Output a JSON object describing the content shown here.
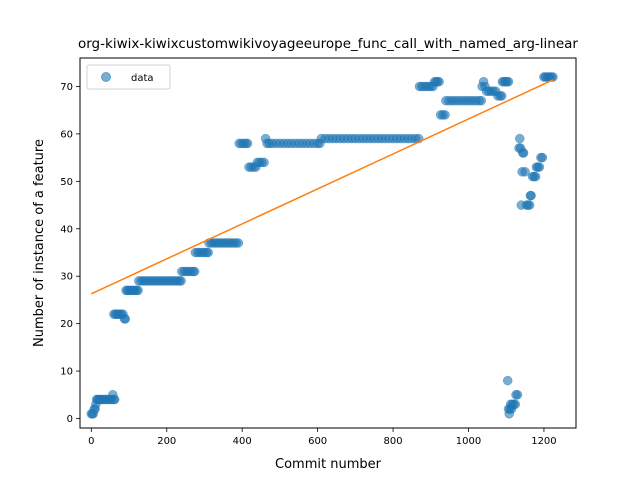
{
  "chart_data": {
    "type": "scatter",
    "title": "org-kiwix-kiwixcustomwikivoyageeurope_func_call_with_named_arg-linear",
    "xlabel": "Commit number",
    "ylabel": "Number of instance of a feature",
    "xlim": [
      -30,
      1285
    ],
    "ylim": [
      -2,
      76
    ],
    "xticks": [
      0,
      200,
      400,
      600,
      800,
      1000,
      1200
    ],
    "yticks": [
      0,
      10,
      20,
      30,
      40,
      50,
      60,
      70
    ],
    "grid": false,
    "legend": {
      "placement": "top-left",
      "entries": [
        "data"
      ]
    },
    "series": [
      {
        "name": "data",
        "color": "#1f77b4",
        "points": [
          [
            0,
            1
          ],
          [
            3,
            1
          ],
          [
            5,
            1
          ],
          [
            8,
            2
          ],
          [
            10,
            2
          ],
          [
            12,
            3
          ],
          [
            14,
            4
          ],
          [
            17,
            4
          ],
          [
            20,
            4
          ],
          [
            23,
            4
          ],
          [
            26,
            4
          ],
          [
            30,
            4
          ],
          [
            34,
            4
          ],
          [
            38,
            4
          ],
          [
            42,
            4
          ],
          [
            46,
            4
          ],
          [
            50,
            4
          ],
          [
            54,
            4
          ],
          [
            57,
            5
          ],
          [
            60,
            4
          ],
          [
            62,
            4
          ],
          [
            60,
            22
          ],
          [
            64,
            22
          ],
          [
            68,
            22
          ],
          [
            72,
            22
          ],
          [
            76,
            22
          ],
          [
            80,
            22
          ],
          [
            84,
            22
          ],
          [
            88,
            21
          ],
          [
            90,
            21
          ],
          [
            92,
            27
          ],
          [
            96,
            27
          ],
          [
            100,
            27
          ],
          [
            104,
            27
          ],
          [
            108,
            27
          ],
          [
            112,
            27
          ],
          [
            116,
            27
          ],
          [
            120,
            27
          ],
          [
            124,
            27
          ],
          [
            126,
            29
          ],
          [
            132,
            29
          ],
          [
            138,
            29
          ],
          [
            144,
            29
          ],
          [
            150,
            29
          ],
          [
            156,
            29
          ],
          [
            162,
            29
          ],
          [
            168,
            29
          ],
          [
            174,
            29
          ],
          [
            180,
            29
          ],
          [
            186,
            29
          ],
          [
            192,
            29
          ],
          [
            198,
            29
          ],
          [
            204,
            29
          ],
          [
            210,
            29
          ],
          [
            216,
            29
          ],
          [
            222,
            29
          ],
          [
            228,
            29
          ],
          [
            234,
            29
          ],
          [
            238,
            29
          ],
          [
            240,
            31
          ],
          [
            246,
            31
          ],
          [
            252,
            31
          ],
          [
            258,
            31
          ],
          [
            264,
            31
          ],
          [
            270,
            31
          ],
          [
            274,
            31
          ],
          [
            276,
            35
          ],
          [
            282,
            35
          ],
          [
            288,
            35
          ],
          [
            294,
            35
          ],
          [
            300,
            35
          ],
          [
            306,
            35
          ],
          [
            310,
            35
          ],
          [
            312,
            37
          ],
          [
            318,
            37
          ],
          [
            324,
            37
          ],
          [
            330,
            37
          ],
          [
            336,
            37
          ],
          [
            342,
            37
          ],
          [
            348,
            37
          ],
          [
            354,
            37
          ],
          [
            360,
            37
          ],
          [
            366,
            37
          ],
          [
            372,
            37
          ],
          [
            378,
            37
          ],
          [
            384,
            37
          ],
          [
            390,
            37
          ],
          [
            392,
            58
          ],
          [
            398,
            58
          ],
          [
            404,
            58
          ],
          [
            410,
            58
          ],
          [
            414,
            58
          ],
          [
            418,
            53
          ],
          [
            424,
            53
          ],
          [
            430,
            53
          ],
          [
            436,
            53
          ],
          [
            440,
            54
          ],
          [
            446,
            54
          ],
          [
            452,
            54
          ],
          [
            458,
            54
          ],
          [
            462,
            59
          ],
          [
            466,
            58
          ],
          [
            472,
            58
          ],
          [
            480,
            58
          ],
          [
            490,
            58
          ],
          [
            500,
            58
          ],
          [
            510,
            58
          ],
          [
            520,
            58
          ],
          [
            530,
            58
          ],
          [
            540,
            58
          ],
          [
            550,
            58
          ],
          [
            560,
            58
          ],
          [
            570,
            58
          ],
          [
            580,
            58
          ],
          [
            590,
            58
          ],
          [
            600,
            58
          ],
          [
            606,
            58
          ],
          [
            610,
            59
          ],
          [
            620,
            59
          ],
          [
            630,
            59
          ],
          [
            640,
            59
          ],
          [
            650,
            59
          ],
          [
            660,
            59
          ],
          [
            670,
            59
          ],
          [
            680,
            59
          ],
          [
            690,
            59
          ],
          [
            700,
            59
          ],
          [
            710,
            59
          ],
          [
            720,
            59
          ],
          [
            730,
            59
          ],
          [
            740,
            59
          ],
          [
            750,
            59
          ],
          [
            760,
            59
          ],
          [
            770,
            59
          ],
          [
            780,
            59
          ],
          [
            790,
            59
          ],
          [
            800,
            59
          ],
          [
            810,
            59
          ],
          [
            820,
            59
          ],
          [
            830,
            59
          ],
          [
            840,
            59
          ],
          [
            850,
            59
          ],
          [
            860,
            59
          ],
          [
            868,
            59
          ],
          [
            870,
            70
          ],
          [
            876,
            70
          ],
          [
            882,
            70
          ],
          [
            888,
            70
          ],
          [
            894,
            70
          ],
          [
            900,
            70
          ],
          [
            906,
            70
          ],
          [
            910,
            71
          ],
          [
            914,
            71
          ],
          [
            918,
            71
          ],
          [
            922,
            71
          ],
          [
            926,
            64
          ],
          [
            932,
            64
          ],
          [
            938,
            64
          ],
          [
            940,
            67
          ],
          [
            948,
            67
          ],
          [
            956,
            67
          ],
          [
            964,
            67
          ],
          [
            972,
            67
          ],
          [
            980,
            67
          ],
          [
            988,
            67
          ],
          [
            996,
            67
          ],
          [
            1004,
            67
          ],
          [
            1012,
            67
          ],
          [
            1020,
            67
          ],
          [
            1028,
            67
          ],
          [
            1034,
            67
          ],
          [
            1036,
            70
          ],
          [
            1040,
            71
          ],
          [
            1044,
            70
          ],
          [
            1048,
            69
          ],
          [
            1054,
            69
          ],
          [
            1060,
            69
          ],
          [
            1066,
            69
          ],
          [
            1072,
            69
          ],
          [
            1078,
            68
          ],
          [
            1084,
            68
          ],
          [
            1088,
            68
          ],
          [
            1090,
            71
          ],
          [
            1094,
            71
          ],
          [
            1098,
            71
          ],
          [
            1102,
            71
          ],
          [
            1106,
            71
          ],
          [
            1104,
            8
          ],
          [
            1106,
            2
          ],
          [
            1108,
            1
          ],
          [
            1110,
            2
          ],
          [
            1112,
            3
          ],
          [
            1114,
            2
          ],
          [
            1116,
            3
          ],
          [
            1120,
            3
          ],
          [
            1124,
            3
          ],
          [
            1126,
            5
          ],
          [
            1130,
            5
          ],
          [
            1134,
            57
          ],
          [
            1136,
            59
          ],
          [
            1138,
            57
          ],
          [
            1140,
            45
          ],
          [
            1142,
            52
          ],
          [
            1144,
            56
          ],
          [
            1146,
            56
          ],
          [
            1150,
            52
          ],
          [
            1154,
            45
          ],
          [
            1158,
            45
          ],
          [
            1162,
            45
          ],
          [
            1164,
            47
          ],
          [
            1166,
            47
          ],
          [
            1170,
            51
          ],
          [
            1174,
            51
          ],
          [
            1178,
            51
          ],
          [
            1180,
            53
          ],
          [
            1184,
            53
          ],
          [
            1188,
            53
          ],
          [
            1192,
            55
          ],
          [
            1196,
            55
          ],
          [
            1200,
            72
          ],
          [
            1204,
            72
          ],
          [
            1208,
            72
          ],
          [
            1212,
            72
          ],
          [
            1216,
            72
          ],
          [
            1220,
            72
          ],
          [
            1224,
            72
          ]
        ]
      },
      {
        "name": "",
        "color": "#ff7f0e",
        "type": "line",
        "points": [
          [
            0,
            26.3
          ],
          [
            1224,
            71.4
          ]
        ]
      }
    ]
  }
}
